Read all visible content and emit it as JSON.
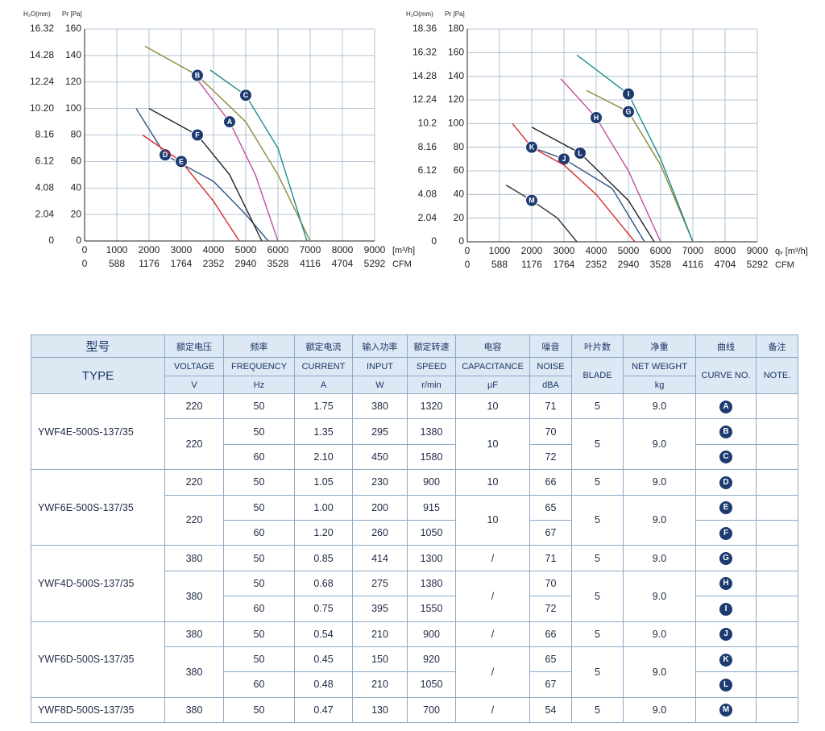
{
  "chart_data": [
    {
      "type": "line",
      "ylabel": "Pғ [Pa]",
      "y2label": "H₂O(mm)",
      "xlabel": "[m³/h]",
      "x2label": "CFM",
      "xlim": [
        0,
        9000
      ],
      "xticks": [
        0,
        1000,
        2000,
        3000,
        4000,
        5000,
        6000,
        7000,
        8000,
        9000
      ],
      "x2lim": [
        0,
        5292
      ],
      "x2ticks": [
        0,
        588,
        1176,
        1764,
        2352,
        2940,
        3528,
        4116,
        4704,
        5292
      ],
      "ylim": [
        0,
        160
      ],
      "yticks": [
        0,
        20,
        40,
        60,
        80,
        100,
        120,
        140,
        160
      ],
      "y2lim": [
        0,
        16.32
      ],
      "y2ticks": [
        0,
        2.04,
        4.08,
        6.12,
        8.16,
        {
          "value": 10.2,
          "label": "10.20"
        },
        12.24,
        14.28,
        16.32
      ],
      "grid": true,
      "series": [
        {
          "name": "A",
          "color": "#c24e9e",
          "x": [
            3300,
            4500,
            5300,
            6000
          ],
          "values": [
            128,
            90,
            50,
            0
          ]
        },
        {
          "name": "B",
          "color": "#8f8a3c",
          "x": [
            1875,
            3500,
            5000,
            6000,
            7000
          ],
          "values": [
            147,
            125,
            90,
            50,
            0
          ]
        },
        {
          "name": "C",
          "color": "#1f8a8c",
          "x": [
            3900,
            5000,
            6000,
            6900
          ],
          "values": [
            129,
            110,
            70,
            0
          ]
        },
        {
          "name": "D",
          "color": "#2f5486",
          "x": [
            1600,
            2500,
            4000,
            5000,
            5700
          ],
          "values": [
            100,
            65,
            45,
            20,
            0
          ]
        },
        {
          "name": "E",
          "color": "#d62b2b",
          "x": [
            1800,
            3000,
            4000,
            4800
          ],
          "values": [
            80,
            60,
            30,
            0
          ]
        },
        {
          "name": "F",
          "color": "#222222",
          "x": [
            2000,
            3500,
            4500,
            5500
          ],
          "values": [
            100,
            80,
            50,
            0
          ]
        }
      ]
    },
    {
      "type": "line",
      "ylabel": "Pғ [Pa]",
      "y2label": "H₂O(mm)",
      "xlabel": "qᵥ [m³/h]",
      "x2label": "CFM",
      "xlim": [
        0,
        9000
      ],
      "xticks": [
        0,
        1000,
        2000,
        3000,
        4000,
        5000,
        6000,
        7000,
        8000,
        9000
      ],
      "x2lim": [
        0,
        5292
      ],
      "x2ticks": [
        0,
        588,
        1176,
        1764,
        2352,
        2940,
        3528,
        4116,
        4704,
        5292
      ],
      "ylim": [
        0,
        180
      ],
      "yticks": [
        0,
        20,
        40,
        60,
        80,
        100,
        120,
        140,
        160,
        180
      ],
      "y2lim": [
        0,
        18.36
      ],
      "y2ticks": [
        0,
        2.04,
        4.08,
        6.12,
        8.16,
        10.2,
        12.24,
        14.28,
        16.32,
        18.36
      ],
      "grid": true,
      "series": [
        {
          "name": "G",
          "color": "#8f8a3c",
          "x": [
            3700,
            5000,
            6000,
            7000
          ],
          "values": [
            128,
            110,
            65,
            0
          ]
        },
        {
          "name": "H",
          "color": "#c24e9e",
          "x": [
            2900,
            4000,
            5000,
            6000
          ],
          "values": [
            138,
            105,
            60,
            0
          ]
        },
        {
          "name": "I",
          "color": "#1f8a8c",
          "x": [
            3400,
            5000,
            6000,
            7000
          ],
          "values": [
            158,
            125,
            70,
            0
          ]
        },
        {
          "name": "J",
          "color": "#2f5486",
          "x": [
            2200,
            3000,
            4500,
            5500
          ],
          "values": [
            78,
            70,
            45,
            0
          ]
        },
        {
          "name": "K",
          "color": "#d62b2b",
          "x": [
            1400,
            2000,
            3000,
            4000,
            5200
          ],
          "values": [
            100,
            80,
            65,
            40,
            0
          ]
        },
        {
          "name": "L",
          "color": "#222222",
          "x": [
            2000,
            3500,
            5000,
            5800
          ],
          "values": [
            97,
            75,
            35,
            0
          ]
        },
        {
          "name": "M",
          "color": "#333333",
          "x": [
            1200,
            2000,
            2800,
            3400
          ],
          "values": [
            48,
            35,
            20,
            0
          ]
        }
      ]
    }
  ],
  "table": {
    "columns": [
      {
        "cn": "型号",
        "en": "TYPE"
      },
      {
        "cn": "额定电压",
        "en": "VOLTAGE",
        "unit": "V"
      },
      {
        "cn": "频率",
        "en": "FREQUENCY",
        "unit": "Hz"
      },
      {
        "cn": "额定电流",
        "en": "CURRENT",
        "unit": "A"
      },
      {
        "cn": "输入功率",
        "en": "INPUT",
        "unit": "W"
      },
      {
        "cn": "额定转速",
        "en": "SPEED",
        "unit": "r/min"
      },
      {
        "cn": "电容",
        "en": "CAPACITANCE",
        "unit": "μF"
      },
      {
        "cn": "噪音",
        "en": "NOISE",
        "unit": "dBA"
      },
      {
        "cn": "叶片数",
        "en": "BLADE"
      },
      {
        "cn": "净重",
        "en": "NET WEIGHT",
        "unit": "kg"
      },
      {
        "cn": "曲线",
        "en": "CURVE NO."
      },
      {
        "cn": "备注",
        "en": "NOTE."
      }
    ],
    "groups": [
      {
        "type": "YWF4E-500S-137/35",
        "subgroups": [
          {
            "voltage": "220",
            "capacitance": "10",
            "blade": "5",
            "weight": "9.0",
            "rows": [
              {
                "frequency": "50",
                "current": "1.75",
                "input": "380",
                "speed": "1320",
                "noise": "71",
                "curve": "A"
              }
            ]
          },
          {
            "voltage": "220",
            "capacitance": "10",
            "blade": "5",
            "weight": "9.0",
            "rows": [
              {
                "frequency": "50",
                "current": "1.35",
                "input": "295",
                "speed": "1380",
                "noise": "70",
                "curve": "B"
              },
              {
                "frequency": "60",
                "current": "2.10",
                "input": "450",
                "speed": "1580",
                "noise": "72",
                "curve": "C"
              }
            ]
          }
        ]
      },
      {
        "type": "YWF6E-500S-137/35",
        "subgroups": [
          {
            "voltage": "220",
            "capacitance": "10",
            "blade": "5",
            "weight": "9.0",
            "rows": [
              {
                "frequency": "50",
                "current": "1.05",
                "input": "230",
                "speed": "900",
                "noise": "66",
                "curve": "D"
              }
            ]
          },
          {
            "voltage": "220",
            "capacitance": "10",
            "blade": "5",
            "weight": "9.0",
            "rows": [
              {
                "frequency": "50",
                "current": "1.00",
                "input": "200",
                "speed": "915",
                "noise": "65",
                "curve": "E"
              },
              {
                "frequency": "60",
                "current": "1.20",
                "input": "260",
                "speed": "1050",
                "noise": "67",
                "curve": "F"
              }
            ]
          }
        ]
      },
      {
        "type": "YWF4D-500S-137/35",
        "subgroups": [
          {
            "voltage": "380",
            "capacitance": "/",
            "blade": "5",
            "weight": "9.0",
            "rows": [
              {
                "frequency": "50",
                "current": "0.85",
                "input": "414",
                "speed": "1300",
                "noise": "71",
                "curve": "G"
              }
            ]
          },
          {
            "voltage": "380",
            "capacitance": "/",
            "blade": "5",
            "weight": "9.0",
            "rows": [
              {
                "frequency": "50",
                "current": "0.68",
                "input": "275",
                "speed": "1380",
                "noise": "70",
                "curve": "H"
              },
              {
                "frequency": "60",
                "current": "0.75",
                "input": "395",
                "speed": "1550",
                "noise": "72",
                "curve": "I"
              }
            ]
          }
        ]
      },
      {
        "type": "YWF6D-500S-137/35",
        "subgroups": [
          {
            "voltage": "380",
            "capacitance": "/",
            "blade": "5",
            "weight": "9.0",
            "rows": [
              {
                "frequency": "50",
                "current": "0.54",
                "input": "210",
                "speed": "900",
                "noise": "66",
                "curve": "J"
              }
            ]
          },
          {
            "voltage": "380",
            "capacitance": "/",
            "blade": "5",
            "weight": "9.0",
            "rows": [
              {
                "frequency": "50",
                "current": "0.45",
                "input": "150",
                "speed": "920",
                "noise": "65",
                "curve": "K"
              },
              {
                "frequency": "60",
                "current": "0.48",
                "input": "210",
                "speed": "1050",
                "noise": "67",
                "curve": "L"
              }
            ]
          }
        ]
      },
      {
        "type": "YWF8D-500S-137/35",
        "subgroups": [
          {
            "voltage": "380",
            "capacitance": "/",
            "blade": "5",
            "weight": "9.0",
            "rows": [
              {
                "frequency": "50",
                "current": "0.47",
                "input": "130",
                "speed": "700",
                "noise": "54",
                "curve": "M"
              }
            ]
          }
        ]
      }
    ]
  }
}
